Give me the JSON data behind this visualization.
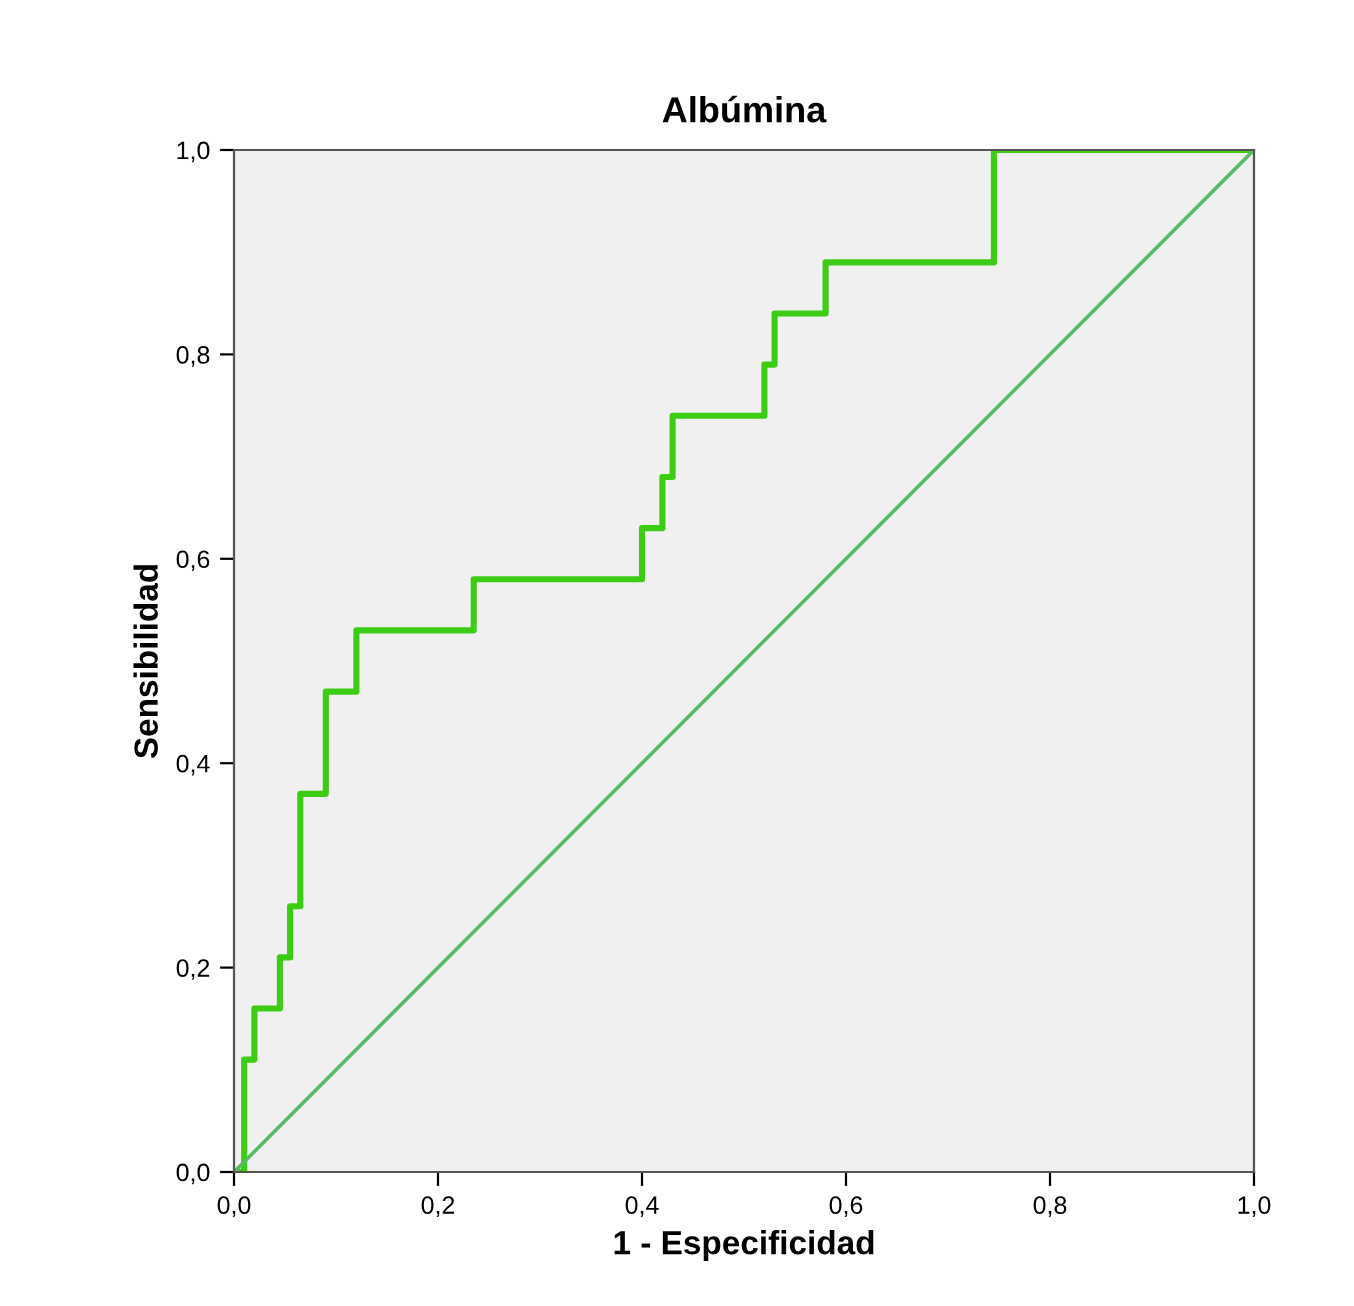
{
  "chart_data": {
    "type": "step",
    "title": "Albúmina",
    "xlabel": "1 - Especificidad",
    "ylabel": "Sensibilidad",
    "xlim": [
      0,
      1
    ],
    "ylim": [
      0,
      1
    ],
    "xticks": [
      {
        "value": 0,
        "label": "0,0"
      },
      {
        "value": 0.2,
        "label": "0,2"
      },
      {
        "value": 0.4,
        "label": "0,4"
      },
      {
        "value": 0.6,
        "label": "0,6"
      },
      {
        "value": 0.8,
        "label": "0,8"
      },
      {
        "value": 1,
        "label": "1,0"
      }
    ],
    "yticks": [
      {
        "value": 0,
        "label": "0,0"
      },
      {
        "value": 0.2,
        "label": "0,2"
      },
      {
        "value": 0.4,
        "label": "0,4"
      },
      {
        "value": 0.6,
        "label": "0,6"
      },
      {
        "value": 0.8,
        "label": "0,8"
      },
      {
        "value": 1,
        "label": "1,0"
      }
    ],
    "grid": false,
    "legend": false,
    "series": [
      {
        "color": "#3ccc14",
        "x": [
          0,
          0.01,
          0.02,
          0.045,
          0.055,
          0.065,
          0.09,
          0.12,
          0.235,
          0.4,
          0.42,
          0.43,
          0.52,
          0.53,
          0.58,
          0.745,
          1.0
        ],
        "values": [
          0,
          0.11,
          0.16,
          0.21,
          0.26,
          0.37,
          0.47,
          0.53,
          0.58,
          0.63,
          0.68,
          0.74,
          0.79,
          0.84,
          0.89,
          1.0,
          1.0
        ]
      },
      {
        "type": "line",
        "color": "#55bb66",
        "x": [
          0,
          1
        ],
        "values": [
          0,
          1
        ]
      }
    ]
  }
}
